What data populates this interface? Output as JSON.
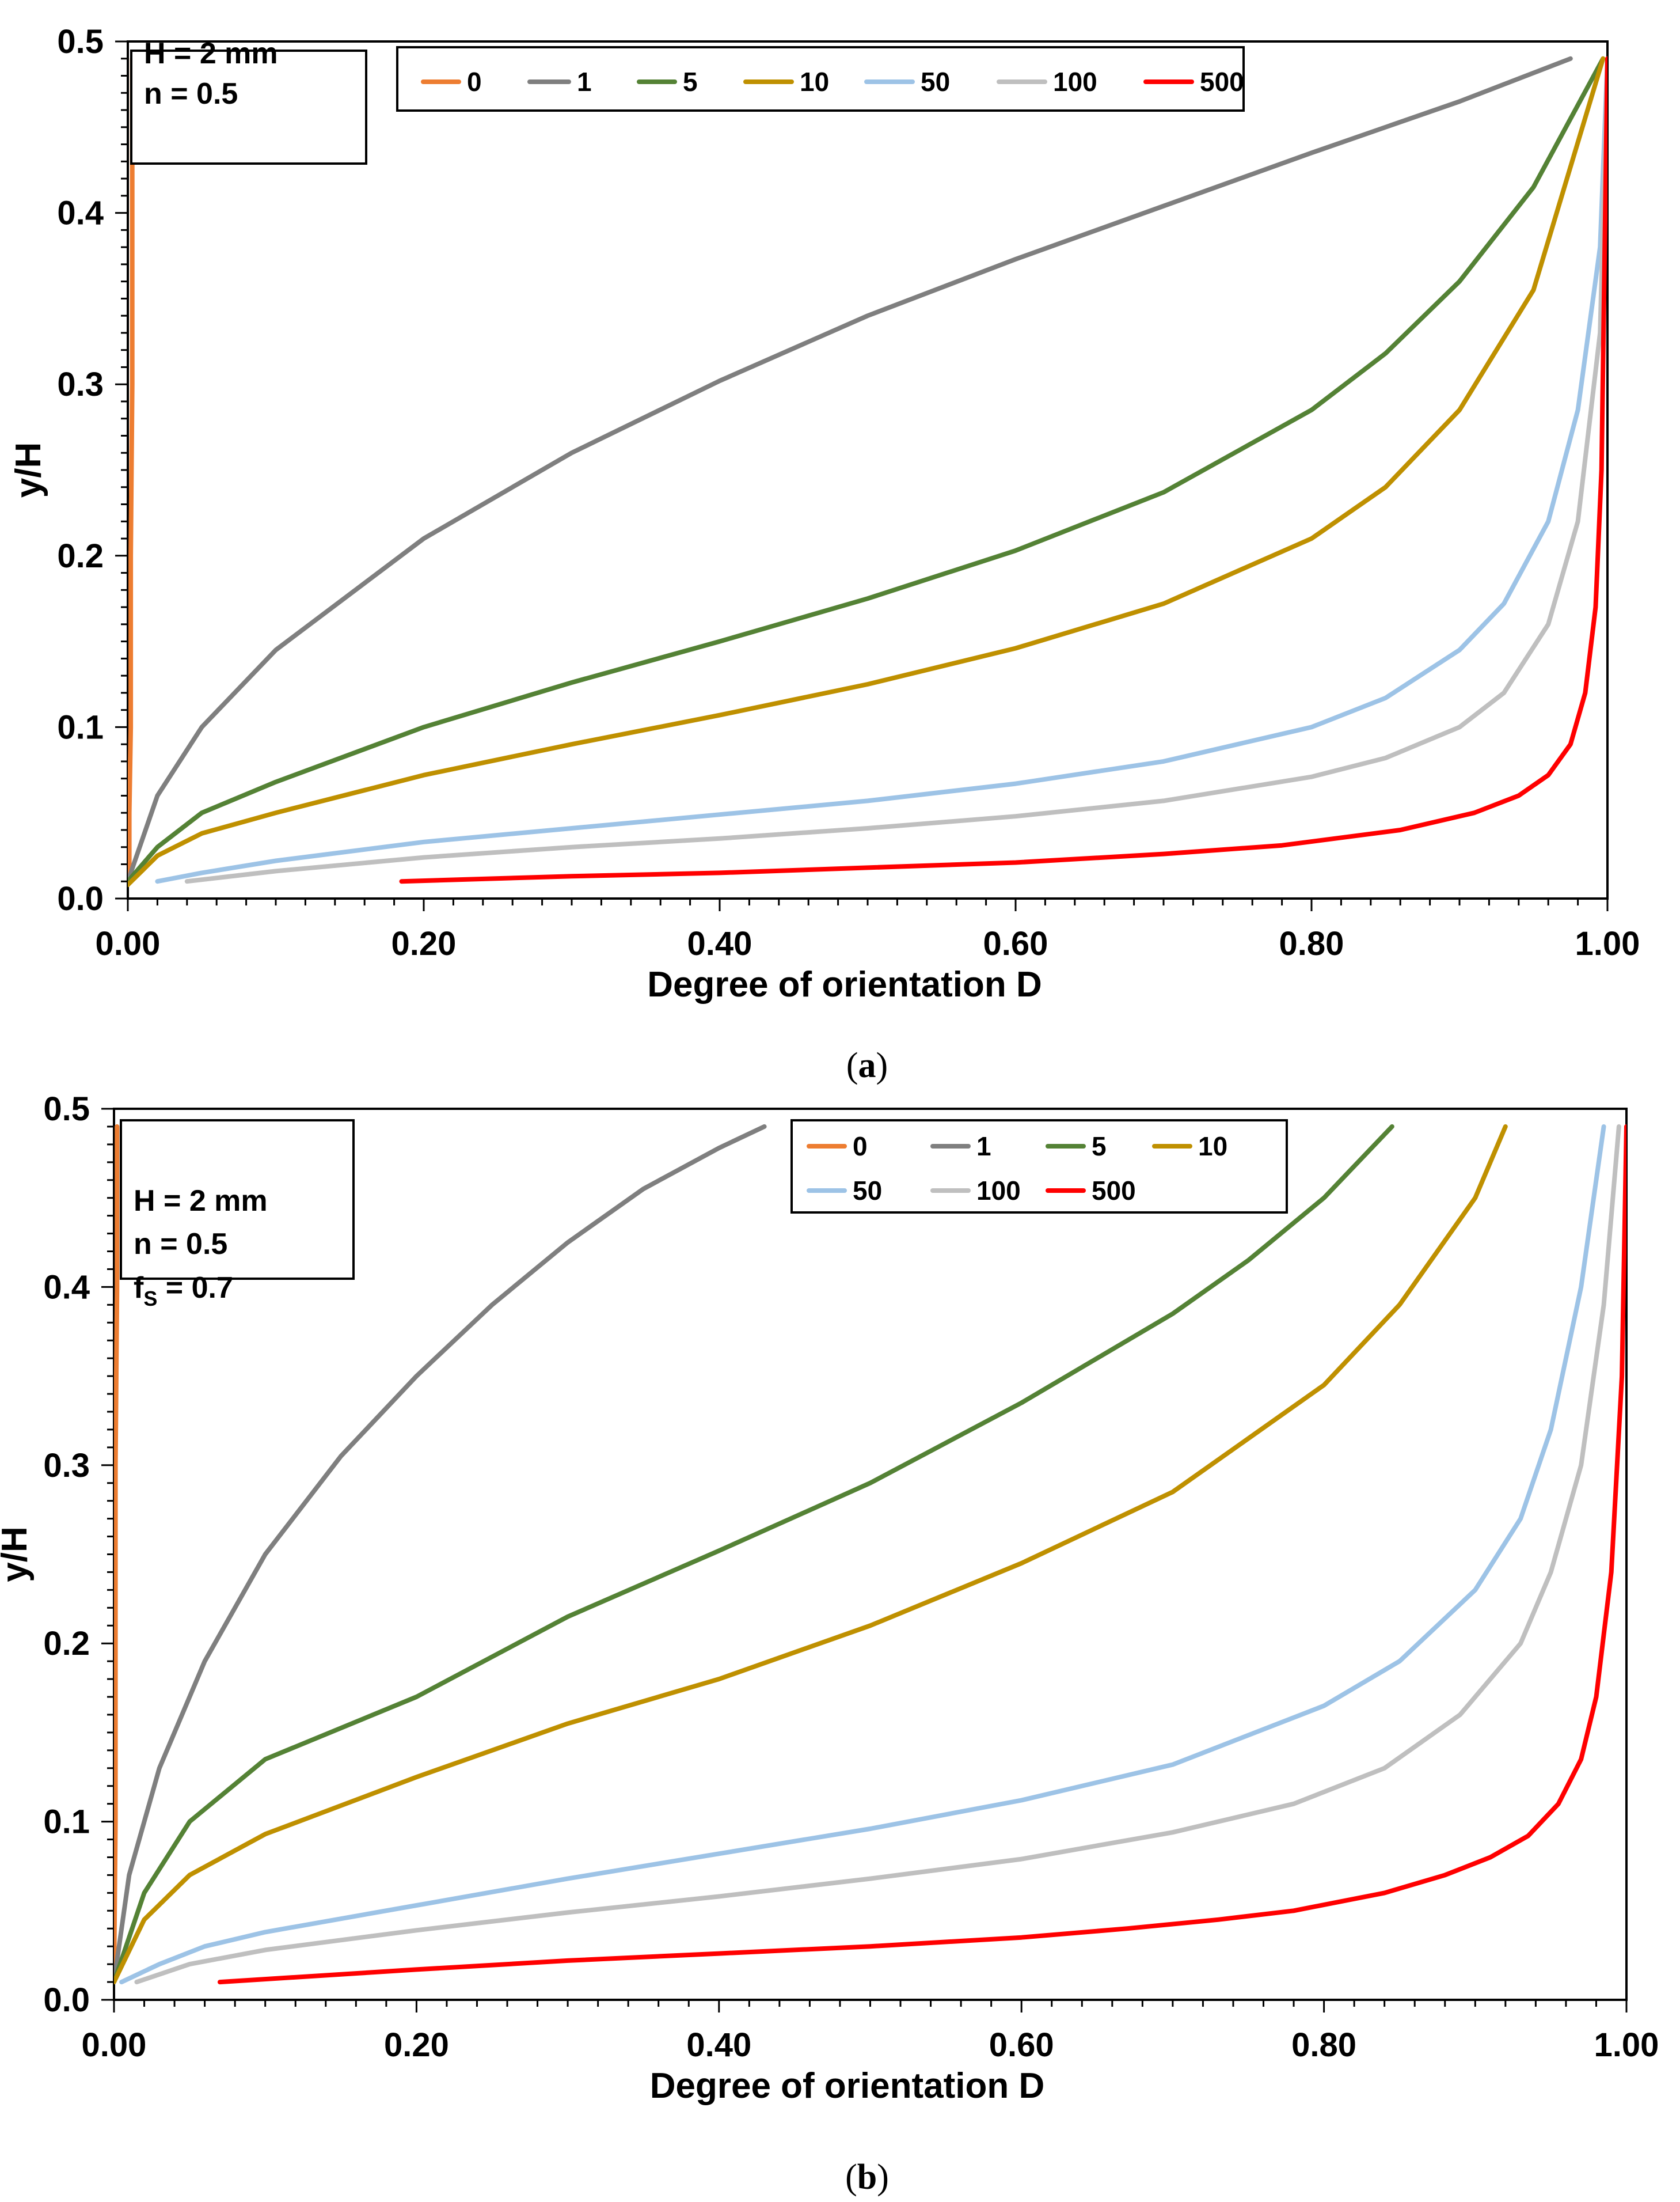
{
  "colors": {
    "0": "#ED7D31",
    "1": "#7F7F7F",
    "5": "#548235",
    "10": "#BF9000",
    "50": "#9DC3E6",
    "100": "#BFBFBF",
    "500": "#FF0000"
  },
  "chart_data": [
    {
      "type": "line",
      "caption": {
        "open": "(",
        "letter": "a",
        "close": ")"
      },
      "title": "",
      "xlabel": "Degree of orientation D",
      "ylabel": "y/H",
      "xlim": [
        0,
        1
      ],
      "ylim": [
        0,
        0.5
      ],
      "x_ticks": [
        "0.00",
        "0.20",
        "0.40",
        "0.60",
        "0.80",
        "1.00"
      ],
      "y_ticks": [
        "0.0",
        "0.1",
        "0.2",
        "0.3",
        "0.4",
        "0.5"
      ],
      "legend_position": "top",
      "parameters": [
        {
          "text": "H = 2 mm"
        },
        {
          "text": "n = 0.5"
        }
      ],
      "series": [
        {
          "name": "0",
          "x": [
            0.001,
            0.001,
            0.002,
            0.002,
            0.003,
            0.003,
            0.003
          ],
          "y": [
            0.01,
            0.05,
            0.1,
            0.2,
            0.3,
            0.4,
            0.49
          ]
        },
        {
          "name": "1",
          "x": [
            0.0,
            0.02,
            0.05,
            0.1,
            0.2,
            0.3,
            0.4,
            0.5,
            0.6,
            0.7,
            0.8,
            0.9,
            0.975
          ],
          "y": [
            0.01,
            0.06,
            0.1,
            0.145,
            0.21,
            0.26,
            0.302,
            0.34,
            0.373,
            0.404,
            0.435,
            0.465,
            0.49
          ]
        },
        {
          "name": "5",
          "x": [
            0.0,
            0.02,
            0.05,
            0.1,
            0.2,
            0.3,
            0.4,
            0.5,
            0.6,
            0.7,
            0.8,
            0.85,
            0.9,
            0.95,
            0.997
          ],
          "y": [
            0.01,
            0.03,
            0.05,
            0.068,
            0.1,
            0.126,
            0.15,
            0.175,
            0.203,
            0.237,
            0.285,
            0.318,
            0.36,
            0.415,
            0.49
          ]
        },
        {
          "name": "10",
          "x": [
            0.0,
            0.02,
            0.05,
            0.1,
            0.2,
            0.3,
            0.4,
            0.5,
            0.6,
            0.7,
            0.8,
            0.85,
            0.9,
            0.95,
            0.997
          ],
          "y": [
            0.008,
            0.025,
            0.038,
            0.05,
            0.072,
            0.09,
            0.107,
            0.125,
            0.146,
            0.172,
            0.21,
            0.24,
            0.285,
            0.355,
            0.49
          ]
        },
        {
          "name": "50",
          "x": [
            0.02,
            0.05,
            0.1,
            0.2,
            0.3,
            0.4,
            0.5,
            0.6,
            0.7,
            0.8,
            0.85,
            0.9,
            0.93,
            0.96,
            0.98,
            0.995,
            1.0
          ],
          "y": [
            0.01,
            0.015,
            0.022,
            0.033,
            0.041,
            0.049,
            0.057,
            0.067,
            0.08,
            0.1,
            0.117,
            0.145,
            0.172,
            0.22,
            0.285,
            0.38,
            0.49
          ]
        },
        {
          "name": "100",
          "x": [
            0.04,
            0.1,
            0.2,
            0.3,
            0.4,
            0.5,
            0.6,
            0.7,
            0.8,
            0.85,
            0.9,
            0.93,
            0.96,
            0.98,
            0.995,
            1.0
          ],
          "y": [
            0.01,
            0.016,
            0.024,
            0.03,
            0.035,
            0.041,
            0.048,
            0.057,
            0.071,
            0.082,
            0.1,
            0.12,
            0.16,
            0.22,
            0.33,
            0.49
          ]
        },
        {
          "name": "500",
          "x": [
            0.185,
            0.3,
            0.4,
            0.5,
            0.6,
            0.7,
            0.78,
            0.86,
            0.91,
            0.94,
            0.96,
            0.975,
            0.985,
            0.992,
            0.996,
            1.0
          ],
          "y": [
            0.01,
            0.013,
            0.015,
            0.018,
            0.021,
            0.026,
            0.031,
            0.04,
            0.05,
            0.06,
            0.072,
            0.09,
            0.12,
            0.17,
            0.25,
            0.49
          ]
        }
      ]
    },
    {
      "type": "line",
      "caption": {
        "open": "(",
        "letter": "b",
        "close": ")"
      },
      "title": "",
      "xlabel": "Degree of orientation D",
      "ylabel": "y/H",
      "xlim": [
        0,
        1
      ],
      "ylim": [
        0,
        0.5
      ],
      "x_ticks": [
        "0.00",
        "0.20",
        "0.40",
        "0.60",
        "0.80",
        "1.00"
      ],
      "y_ticks": [
        "0.0",
        "0.1",
        "0.2",
        "0.3",
        "0.4",
        "0.5"
      ],
      "legend_position": "top",
      "parameters": [
        {
          "text": "H = 2 mm"
        },
        {
          "text": "n  = 0.5"
        },
        {
          "text": "f",
          "sub": "S",
          "tail": " = 0.7"
        }
      ],
      "series": [
        {
          "name": "0",
          "x": [
            0.0,
            0.001,
            0.001,
            0.001,
            0.002,
            0.002
          ],
          "y": [
            0.01,
            0.1,
            0.2,
            0.3,
            0.4,
            0.49
          ]
        },
        {
          "name": "1",
          "x": [
            0.0,
            0.01,
            0.03,
            0.06,
            0.1,
            0.15,
            0.2,
            0.25,
            0.3,
            0.35,
            0.4,
            0.43
          ],
          "y": [
            0.01,
            0.07,
            0.13,
            0.19,
            0.25,
            0.305,
            0.35,
            0.39,
            0.425,
            0.455,
            0.478,
            0.49
          ]
        },
        {
          "name": "5",
          "x": [
            0.0,
            0.02,
            0.05,
            0.1,
            0.2,
            0.3,
            0.4,
            0.5,
            0.6,
            0.7,
            0.75,
            0.8,
            0.845
          ],
          "y": [
            0.01,
            0.06,
            0.1,
            0.135,
            0.17,
            0.215,
            0.252,
            0.29,
            0.335,
            0.385,
            0.415,
            0.45,
            0.49
          ]
        },
        {
          "name": "10",
          "x": [
            0.0,
            0.02,
            0.05,
            0.1,
            0.2,
            0.3,
            0.4,
            0.5,
            0.6,
            0.7,
            0.8,
            0.85,
            0.9,
            0.92
          ],
          "y": [
            0.01,
            0.045,
            0.07,
            0.093,
            0.125,
            0.155,
            0.18,
            0.21,
            0.245,
            0.285,
            0.345,
            0.39,
            0.45,
            0.49
          ]
        },
        {
          "name": "50",
          "x": [
            0.005,
            0.03,
            0.06,
            0.1,
            0.2,
            0.3,
            0.4,
            0.5,
            0.6,
            0.7,
            0.8,
            0.85,
            0.9,
            0.93,
            0.95,
            0.97,
            0.985
          ],
          "y": [
            0.01,
            0.02,
            0.03,
            0.038,
            0.053,
            0.068,
            0.082,
            0.096,
            0.112,
            0.132,
            0.165,
            0.19,
            0.23,
            0.27,
            0.32,
            0.4,
            0.49
          ]
        },
        {
          "name": "100",
          "x": [
            0.015,
            0.05,
            0.1,
            0.2,
            0.3,
            0.4,
            0.5,
            0.6,
            0.7,
            0.78,
            0.84,
            0.89,
            0.93,
            0.95,
            0.97,
            0.985,
            0.995
          ],
          "y": [
            0.01,
            0.02,
            0.028,
            0.039,
            0.049,
            0.058,
            0.068,
            0.079,
            0.094,
            0.11,
            0.13,
            0.16,
            0.2,
            0.24,
            0.3,
            0.39,
            0.49
          ]
        },
        {
          "name": "500",
          "x": [
            0.07,
            0.2,
            0.3,
            0.4,
            0.5,
            0.6,
            0.67,
            0.73,
            0.78,
            0.84,
            0.88,
            0.91,
            0.935,
            0.955,
            0.97,
            0.98,
            0.99,
            0.997,
            1.0
          ],
          "y": [
            0.01,
            0.017,
            0.022,
            0.026,
            0.03,
            0.035,
            0.04,
            0.045,
            0.05,
            0.06,
            0.07,
            0.08,
            0.092,
            0.11,
            0.135,
            0.17,
            0.24,
            0.35,
            0.49
          ]
        }
      ]
    }
  ]
}
